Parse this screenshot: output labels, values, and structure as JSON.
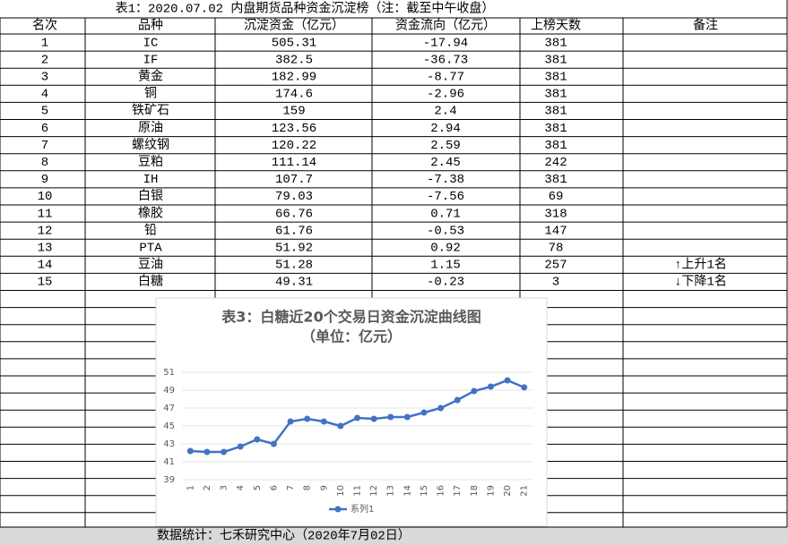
{
  "table": {
    "title": "表1：2020.07.02 内盘期货品种资金沉淀榜（注：截至中午收盘）",
    "columns": [
      "名次",
      "品种",
      "沉淀资金（亿元）",
      "资金流向（亿元）",
      "上榜天数",
      "备注"
    ],
    "rows": [
      [
        1,
        "IC",
        505.31,
        -17.94,
        381
      ],
      [
        2,
        "IF",
        382.5,
        -36.73,
        381
      ],
      [
        3,
        "黄金",
        182.99,
        -8.77,
        381
      ],
      [
        4,
        "铜",
        174.6,
        -2.96,
        381
      ],
      [
        5,
        "铁矿石",
        159,
        2.4,
        381
      ],
      [
        6,
        "原油",
        123.56,
        2.94,
        381
      ],
      [
        7,
        "螺纹钢",
        120.22,
        2.59,
        381
      ],
      [
        8,
        "豆粕",
        111.14,
        2.45,
        242
      ],
      [
        9,
        "IH",
        107.7,
        -7.38,
        381
      ],
      [
        10,
        "白银",
        79.03,
        -7.56,
        69
      ],
      [
        11,
        "橡胶",
        66.76,
        0.71,
        318
      ],
      [
        12,
        "铅",
        61.76,
        -0.53,
        147
      ],
      [
        13,
        "PTA",
        51.92,
        0.92,
        78
      ],
      [
        14,
        "豆油",
        51.28,
        1.15,
        257,
        "↑上升1名"
      ],
      [
        15,
        "白糖",
        49.31,
        -0.23,
        3,
        "↓下降1名"
      ]
    ]
  },
  "footer": "数据统计：七禾研究中心（2020年7月02日）",
  "chart_data": {
    "type": "line",
    "title": "表3：白糖近20个交易日资金沉淀曲线图",
    "subtitle": "（单位：亿元）",
    "categories": [
      1,
      2,
      3,
      4,
      5,
      6,
      7,
      8,
      9,
      10,
      11,
      12,
      13,
      14,
      15,
      16,
      17,
      18,
      19,
      20,
      21
    ],
    "series": [
      {
        "name": "系列1",
        "color": "#4472c4",
        "values": [
          42.2,
          42.1,
          42.1,
          42.7,
          43.5,
          43.0,
          45.5,
          45.8,
          45.5,
          45.0,
          45.9,
          45.8,
          46.0,
          46.0,
          46.5,
          47.0,
          47.9,
          48.9,
          49.4,
          50.1,
          49.31
        ]
      }
    ],
    "ylim": [
      39,
      51
    ],
    "yticks": [
      39,
      41,
      43,
      45,
      47,
      49,
      51
    ],
    "grid": true
  }
}
